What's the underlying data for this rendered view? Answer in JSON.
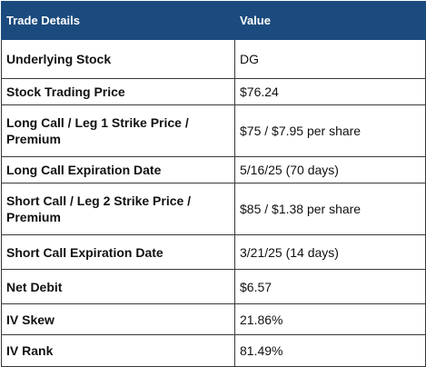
{
  "table": {
    "headers": {
      "label": "Trade Details",
      "value": "Value"
    },
    "rows": [
      {
        "label": "Underlying Stock",
        "value": "DG"
      },
      {
        "label": "Stock Trading Price",
        "value": "$76.24"
      },
      {
        "label": "Long Call / Leg 1 Strike Price / Premium",
        "value": "$75 / $7.95 per share"
      },
      {
        "label": "Long Call Expiration Date",
        "value": "5/16/25 (70 days)"
      },
      {
        "label": "Short Call / Leg 2 Strike Price / Premium",
        "value": "$85 / $1.38 per share"
      },
      {
        "label": "Short Call Expiration Date",
        "value": "3/21/25 (14 days)"
      },
      {
        "label": "Net Debit",
        "value": "$6.57"
      },
      {
        "label": "IV Skew",
        "value": "21.86%"
      },
      {
        "label": "IV Rank",
        "value": "81.49%"
      }
    ]
  },
  "colors": {
    "header_bg": "#1b4b7e",
    "header_text": "#ffffff",
    "border": "#3a3a3a"
  }
}
